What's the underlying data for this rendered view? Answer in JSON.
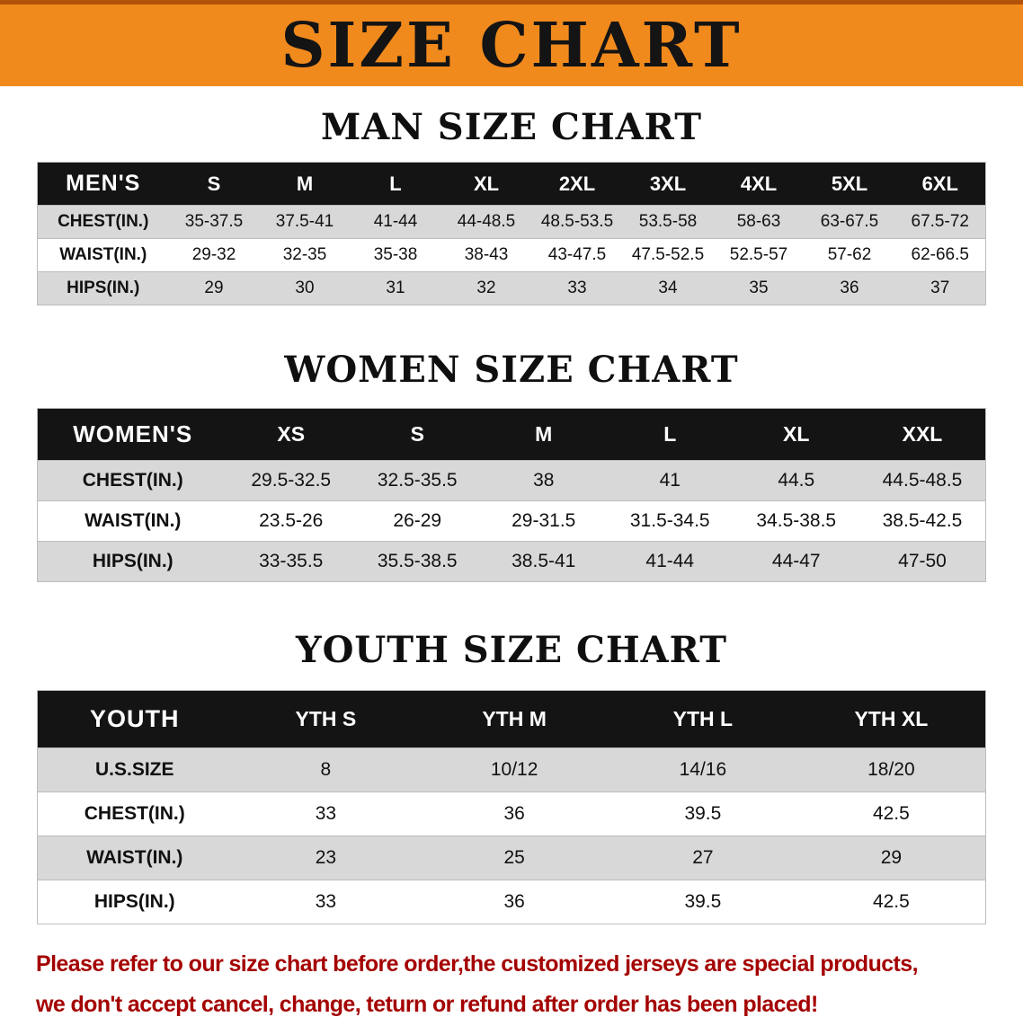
{
  "banner": {
    "title": "SIZE CHART"
  },
  "chart_data": [
    {
      "type": "table",
      "title": "MAN SIZE CHART",
      "header": [
        "MEN'S",
        "S",
        "M",
        "L",
        "XL",
        "2XL",
        "3XL",
        "4XL",
        "5XL",
        "6XL"
      ],
      "rows": [
        {
          "label": "CHEST(IN.)",
          "values": [
            "35-37.5",
            "37.5-41",
            "41-44",
            "44-48.5",
            "48.5-53.5",
            "53.5-58",
            "58-63",
            "63-67.5",
            "67.5-72"
          ]
        },
        {
          "label": "WAIST(IN.)",
          "values": [
            "29-32",
            "32-35",
            "35-38",
            "38-43",
            "43-47.5",
            "47.5-52.5",
            "52.5-57",
            "57-62",
            "62-66.5"
          ]
        },
        {
          "label": "HIPS(IN.)",
          "values": [
            "29",
            "30",
            "31",
            "32",
            "33",
            "34",
            "35",
            "36",
            "37"
          ]
        }
      ]
    },
    {
      "type": "table",
      "title": "WOMEN SIZE CHART",
      "header": [
        "WOMEN'S",
        "XS",
        "S",
        "M",
        "L",
        "XL",
        "XXL"
      ],
      "rows": [
        {
          "label": "CHEST(IN.)",
          "values": [
            "29.5-32.5",
            "32.5-35.5",
            "38",
            "41",
            "44.5",
            "44.5-48.5"
          ]
        },
        {
          "label": "WAIST(IN.)",
          "values": [
            "23.5-26",
            "26-29",
            "29-31.5",
            "31.5-34.5",
            "34.5-38.5",
            "38.5-42.5"
          ]
        },
        {
          "label": "HIPS(IN.)",
          "values": [
            "33-35.5",
            "35.5-38.5",
            "38.5-41",
            "41-44",
            "44-47",
            "47-50"
          ]
        }
      ]
    },
    {
      "type": "table",
      "title": "YOUTH SIZE CHART",
      "header": [
        "YOUTH",
        "YTH S",
        "YTH M",
        "YTH L",
        "YTH XL"
      ],
      "rows": [
        {
          "label": "U.S.SIZE",
          "values": [
            "8",
            "10/12",
            "14/16",
            "18/20"
          ]
        },
        {
          "label": "CHEST(IN.)",
          "values": [
            "33",
            "36",
            "39.5",
            "42.5"
          ]
        },
        {
          "label": "WAIST(IN.)",
          "values": [
            "23",
            "25",
            "27",
            "29"
          ]
        },
        {
          "label": "HIPS(IN.)",
          "values": [
            "33",
            "36",
            "39.5",
            "42.5"
          ]
        }
      ]
    }
  ],
  "notice": {
    "lines": [
      "Please refer to our size chart before order,the customized jerseys are special products,",
      "we don't accept cancel, change, teturn or refund after order has been placed!"
    ]
  },
  "colors": {
    "banner_bg": "#f18a1d",
    "banner_edge": "#b35309",
    "table_header_bg": "#141414",
    "row_stripe": "#d8d8d8",
    "notice_text": "#a40000"
  }
}
